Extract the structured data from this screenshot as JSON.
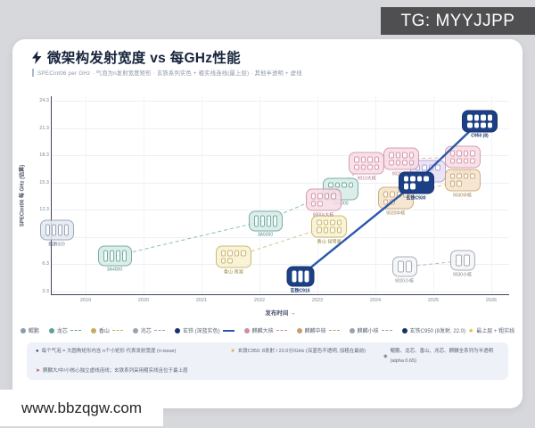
{
  "watermarks": {
    "tg": "TG: MYYJJPP",
    "site": "www.bbzqgw.com"
  },
  "header": {
    "title": "微架构发射宽度 vs 每GHz性能",
    "subtitle": "SPECint06 per GHz · 气泡为n发射宽度矩形 · 玄铁系列实色 + 粗实线连线(最上层) · 其他半透明 + 虚线"
  },
  "chart_data": {
    "type": "scatter",
    "title": "微架构发射宽度 vs 每GHz性能",
    "xlabel": "发布时间 →",
    "ylabel": "SPECint06 每 GHz (估算)",
    "x_ticks": [
      2019,
      2020,
      2021,
      2022,
      2023,
      2024,
      2025,
      2026
    ],
    "y_ticks": [
      3.3,
      6.3,
      9.3,
      12.3,
      15.3,
      18.3,
      21.3,
      24.3
    ],
    "xlim": [
      2018.4,
      2026.3
    ],
    "ylim": [
      2.0,
      25.2
    ],
    "grid": true,
    "encoding_note": "每个气泡内的小矩形个数 = 发射宽度 (n-issue)",
    "series": [
      {
        "name": "鲲鹏",
        "color": "#8d9bb0",
        "fill": "#e4e9f1",
        "text": "#6b7a92",
        "line": "none",
        "points": [
          {
            "label": "鲲鹏920",
            "year": 2018.5,
            "value": 10.1,
            "issue_width": 4
          }
        ]
      },
      {
        "name": "龙芯",
        "color": "#5fa196",
        "fill": "#d8ece7",
        "text": "#4f8a80",
        "line": "dashed",
        "points": [
          {
            "label": "3A4000",
            "year": 2019.5,
            "value": 7.2,
            "issue_width": 4
          },
          {
            "label": "3A5000",
            "year": 2022.1,
            "value": 11.1,
            "issue_width": 4
          },
          {
            "label": "3A6000",
            "year": 2023.4,
            "value": 14.6,
            "issue_width": 6
          }
        ]
      },
      {
        "name": "香山",
        "color": "#c4ad5e",
        "fill": "#f8f1d2",
        "text": "#9a8840",
        "line": "dashed",
        "points": [
          {
            "label": "香山·南湖",
            "year": 2021.55,
            "value": 7.1,
            "issue_width": 6
          },
          {
            "label": "香山·昆明湖",
            "year": 2023.2,
            "value": 10.5,
            "issue_width": 8
          }
        ]
      },
      {
        "name": "麒麟大核",
        "color": "#cf8da3",
        "fill": "#f7dde5",
        "text": "#b06f88",
        "line": "dashed",
        "points": [
          {
            "label": "9000s大核",
            "year": 2023.1,
            "value": 13.4,
            "issue_width": 6
          },
          {
            "label": "9010大核",
            "year": 2023.85,
            "value": 17.4,
            "issue_width": 8
          },
          {
            "label": "9020大核",
            "year": 2024.45,
            "value": 17.9,
            "issue_width": 8
          },
          {
            "label": "9030大核",
            "year": 2025.5,
            "value": 18.1,
            "issue_width": 8
          }
        ]
      },
      {
        "name": "麒麟中核",
        "color": "#c79e6a",
        "fill": "#f4e3cb",
        "text": "#a37c46",
        "line": "dashed",
        "points": [
          {
            "label": "9020中核",
            "year": 2024.35,
            "value": 13.6,
            "issue_width": 6
          },
          {
            "label": "9030中核",
            "year": 2025.5,
            "value": 15.6,
            "issue_width": 6
          }
        ]
      },
      {
        "name": "麒麟小核",
        "color": "#9aa2ac",
        "fill": "#f4f5f6",
        "text": "#7c858f",
        "line": "dashed",
        "points": [
          {
            "label": "9020小核",
            "year": 2024.5,
            "value": 6.0,
            "issue_width": 2
          },
          {
            "label": "9030小核",
            "year": 2025.5,
            "value": 6.7,
            "issue_width": 2
          }
        ]
      },
      {
        "name": "",
        "color": "#a79ace",
        "fill": "#e7e1f5",
        "text": "#8b7fb5",
        "line": "none",
        "points": [
          {
            "label": "",
            "year": 2024.9,
            "value": 16.5,
            "issue_width": 6
          }
        ]
      },
      {
        "name": "玄铁",
        "color": "#16336d",
        "fill": "#1d3f86",
        "text": "#16336d",
        "line": "solid",
        "points": [
          {
            "label": "玄铁C910",
            "year": 2022.7,
            "value": 5.0,
            "issue_width": 3
          },
          {
            "label": "玄铁C930",
            "year": 2024.7,
            "value": 15.3,
            "issue_width": 6
          },
          {
            "label": "C950 (8)",
            "year": 2025.8,
            "value": 22.0,
            "issue_width": 8
          }
        ]
      }
    ],
    "legend_position": "bottom"
  },
  "legend": {
    "items": [
      {
        "label": "鲲鹏",
        "color": "#8d9bb0",
        "line": "none"
      },
      {
        "label": "龙芯",
        "color": "#5fa196",
        "line": "dashed"
      },
      {
        "label": "香山",
        "color": "#c4ad5e",
        "line": "dashed"
      },
      {
        "label": "兆芯",
        "color": "#9aa2ac",
        "line": "dashed"
      },
      {
        "label": "玄铁 (深蓝实色)",
        "color": "#16336d",
        "line": "solid"
      },
      {
        "label": "麒麟大核",
        "color": "#cf8da3",
        "line": "dashed"
      },
      {
        "label": "麒麟中核",
        "color": "#c79e6a",
        "line": "dashed"
      },
      {
        "label": "麒麟小核",
        "color": "#9aa2ac",
        "line": "dashed"
      },
      {
        "label": "玄铁C950 (8发射, 22.0)",
        "color": "#16336d",
        "line": "none",
        "star": "★",
        "suffix": "最上层 + 粗实线"
      }
    ]
  },
  "footnotes": [
    {
      "icon": "●",
      "icon_color": "#2b4a8f",
      "text": "每个气泡 = 大圆角矩形内含 n个小矩形 代表发射宽度 (n-issue)"
    },
    {
      "icon": "★",
      "icon_color": "#d9a93c",
      "text": "玄铁C950: 8发射 / 22.0分/GHz (深蓝色不透明, 加粗在最前)"
    },
    {
      "icon": "◆",
      "icon_color": "#8a93a3",
      "text": "鲲鹏、龙芯、香山、兆芯、麒麟全系列为半透明 (alpha 0.65)"
    },
    {
      "icon": "➤",
      "icon_color": "#b85450",
      "text": "麒麟大/中/小核心独立虚线连线；玄铁系列采用粗实线且位于最上层"
    }
  ],
  "colors": {
    "accent_line": "#2a58ad",
    "card_bg": "#ffffff",
    "page_bg": "#d7d8dc",
    "footnote_bg": "#eef1f7"
  }
}
